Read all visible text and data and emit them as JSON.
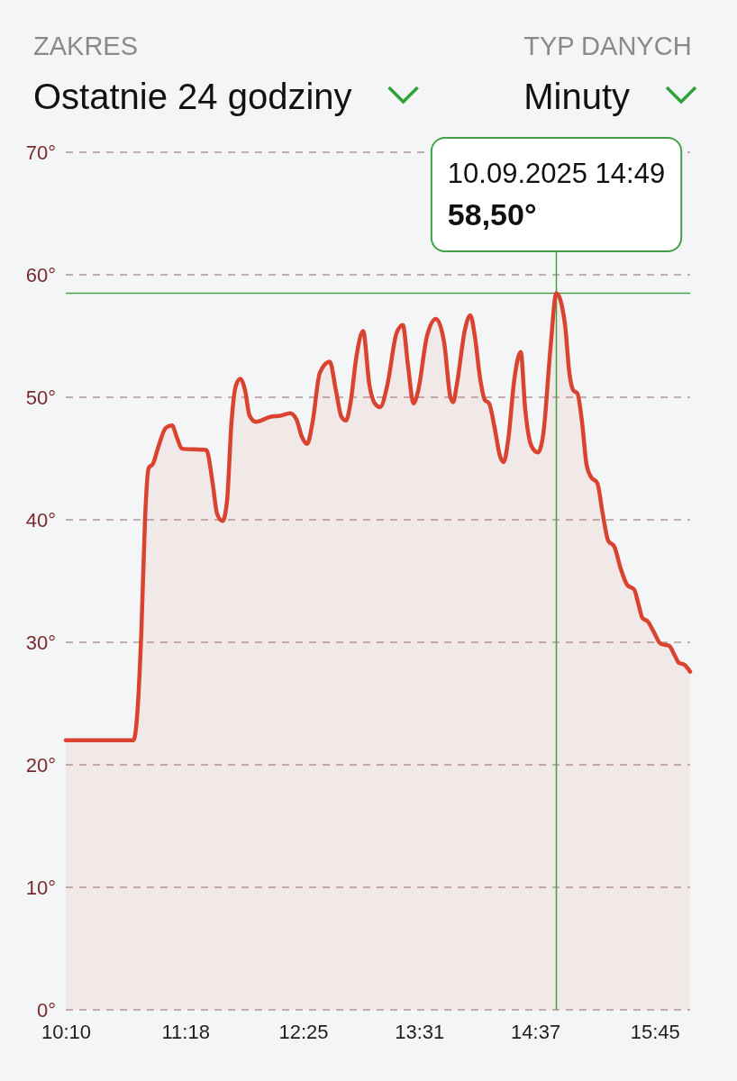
{
  "chart_data": {
    "type": "area",
    "annotations": [
      "ZAKRES",
      "Ostatnie 24 godziny",
      "TYP DANYCH",
      "Minuty",
      "10.09.2025 14:49",
      "58,50°"
    ],
    "xlim": [
      10.167,
      16.085
    ],
    "xticks": [
      {
        "value": 10.167,
        "label": "10:10"
      },
      {
        "value": 11.3,
        "label": "11:18"
      },
      {
        "value": 12.417,
        "label": "12:25"
      },
      {
        "value": 13.517,
        "label": "13:31"
      },
      {
        "value": 14.617,
        "label": "14:37"
      },
      {
        "value": 15.75,
        "label": "15:45"
      }
    ],
    "ylim": [
      0,
      70
    ],
    "yticks": [
      {
        "value": 0,
        "label": "0°"
      },
      {
        "value": 10,
        "label": "10°"
      },
      {
        "value": 20,
        "label": "20°"
      },
      {
        "value": 30,
        "label": "30°"
      },
      {
        "value": 40,
        "label": "40°"
      },
      {
        "value": 50,
        "label": "50°"
      },
      {
        "value": 60,
        "label": "60°"
      },
      {
        "value": 70,
        "label": "70°"
      }
    ],
    "grid": "y",
    "ref_lines": [
      {
        "axis": "x",
        "value": 14.817,
        "color": "#43a047"
      },
      {
        "axis": "y",
        "value": 58.5,
        "color": "#43a047"
      }
    ],
    "series": [
      {
        "color": "#d9432f",
        "x": [
          10.167,
          10.807,
          10.833,
          10.884,
          10.918,
          10.952,
          10.995,
          11.046,
          11.115,
          11.174,
          11.217,
          11.268,
          11.499,
          11.559,
          11.601,
          11.653,
          11.695,
          11.738,
          11.781,
          11.823,
          11.866,
          11.909,
          11.969,
          12.105,
          12.208,
          12.293,
          12.353,
          12.404,
          12.455,
          12.507,
          12.575,
          12.669,
          12.729,
          12.78,
          12.823,
          12.865,
          12.925,
          12.985,
          13.045,
          13.096,
          13.147,
          13.215,
          13.301,
          13.361,
          13.412,
          13.463,
          13.506,
          13.591,
          13.676,
          13.753,
          13.813,
          13.839,
          13.873,
          13.95,
          14.001,
          14.044,
          14.095,
          14.138,
          14.18,
          14.232,
          14.283,
          14.317,
          14.36,
          14.419,
          14.479,
          14.522,
          14.582,
          14.642,
          14.693,
          14.761,
          14.817,
          14.898,
          14.94,
          14.975,
          15.017,
          15.06,
          15.103,
          15.145,
          15.205,
          15.256,
          15.308,
          15.367,
          15.427,
          15.487,
          15.555,
          15.598,
          15.632,
          15.683,
          15.743,
          15.803,
          15.888,
          15.94,
          15.982,
          16.025,
          16.085
        ],
        "values": [
          22.0,
          22.0,
          23.0,
          31.0,
          40.0,
          44.2,
          44.6,
          46.0,
          47.5,
          47.7,
          46.8,
          45.8,
          45.7,
          43.0,
          40.5,
          39.9,
          41.5,
          48.0,
          51.0,
          51.5,
          50.6,
          48.5,
          48.0,
          48.4,
          48.5,
          48.7,
          48.2,
          46.8,
          46.2,
          48.0,
          52.0,
          52.9,
          50.5,
          48.4,
          48.1,
          49.5,
          53.5,
          55.4,
          51.0,
          49.5,
          49.2,
          51.0,
          55.2,
          55.9,
          52.5,
          49.5,
          50.5,
          55.0,
          56.4,
          54.5,
          50.0,
          49.6,
          51.0,
          55.5,
          56.7,
          55.0,
          51.5,
          49.8,
          49.5,
          47.5,
          45.2,
          44.7,
          46.5,
          51.5,
          53.7,
          49.0,
          46.0,
          45.5,
          47.0,
          54.0,
          58.5,
          56.0,
          52.0,
          50.6,
          50.3,
          48.0,
          44.5,
          43.5,
          43.0,
          40.5,
          38.3,
          37.8,
          36.0,
          34.7,
          34.3,
          33.0,
          32.0,
          31.7,
          30.8,
          29.9,
          29.7,
          28.9,
          28.3,
          28.2,
          27.6
        ]
      }
    ]
  }
}
